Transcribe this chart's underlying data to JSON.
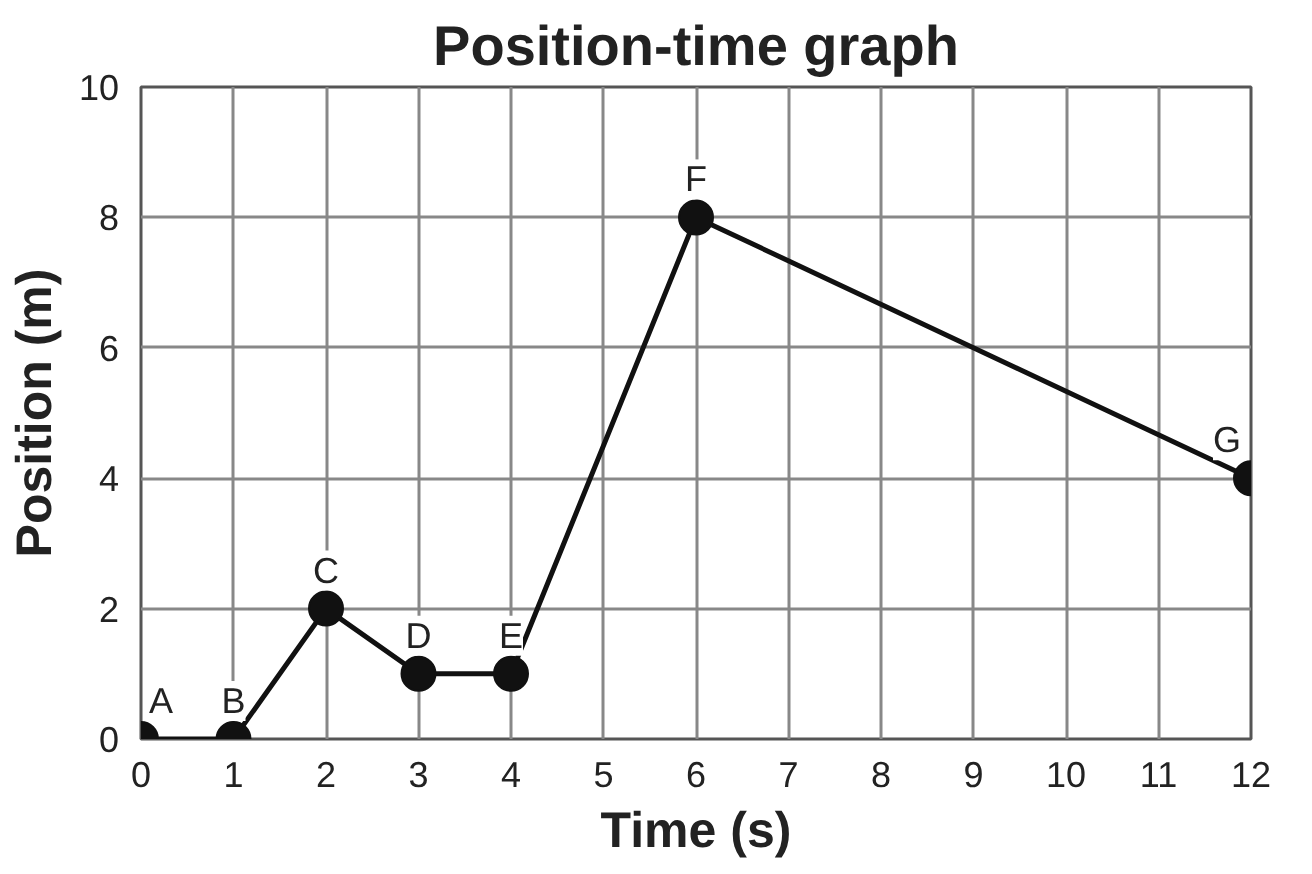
{
  "chart_data": {
    "type": "line",
    "title": "Position-time graph",
    "xlabel": "Time (s)",
    "ylabel": "Position (m)",
    "x": [
      0,
      1,
      2,
      3,
      4,
      6,
      12
    ],
    "series": [
      {
        "color": "#111111",
        "values": [
          0,
          0,
          2,
          1,
          1,
          8,
          4
        ]
      }
    ],
    "xlim": [
      0,
      12
    ],
    "xticks": [
      0,
      1,
      2,
      3,
      4,
      5,
      6,
      7,
      8,
      9,
      10,
      11,
      12
    ],
    "ylim": [
      0,
      10
    ],
    "yticks": [
      0,
      2,
      4,
      6,
      8,
      10
    ],
    "grid": true,
    "marker": "circle",
    "line_style": "solid",
    "annotations": [
      {
        "text": "A",
        "x": 0,
        "y": 0
      },
      {
        "text": "B",
        "x": 1,
        "y": 0
      },
      {
        "text": "C",
        "x": 2,
        "y": 2
      },
      {
        "text": "D",
        "x": 3,
        "y": 1
      },
      {
        "text": "E",
        "x": 4,
        "y": 1
      },
      {
        "text": "F",
        "x": 6,
        "y": 8
      },
      {
        "text": "G",
        "x": 12,
        "y": 4
      }
    ]
  }
}
